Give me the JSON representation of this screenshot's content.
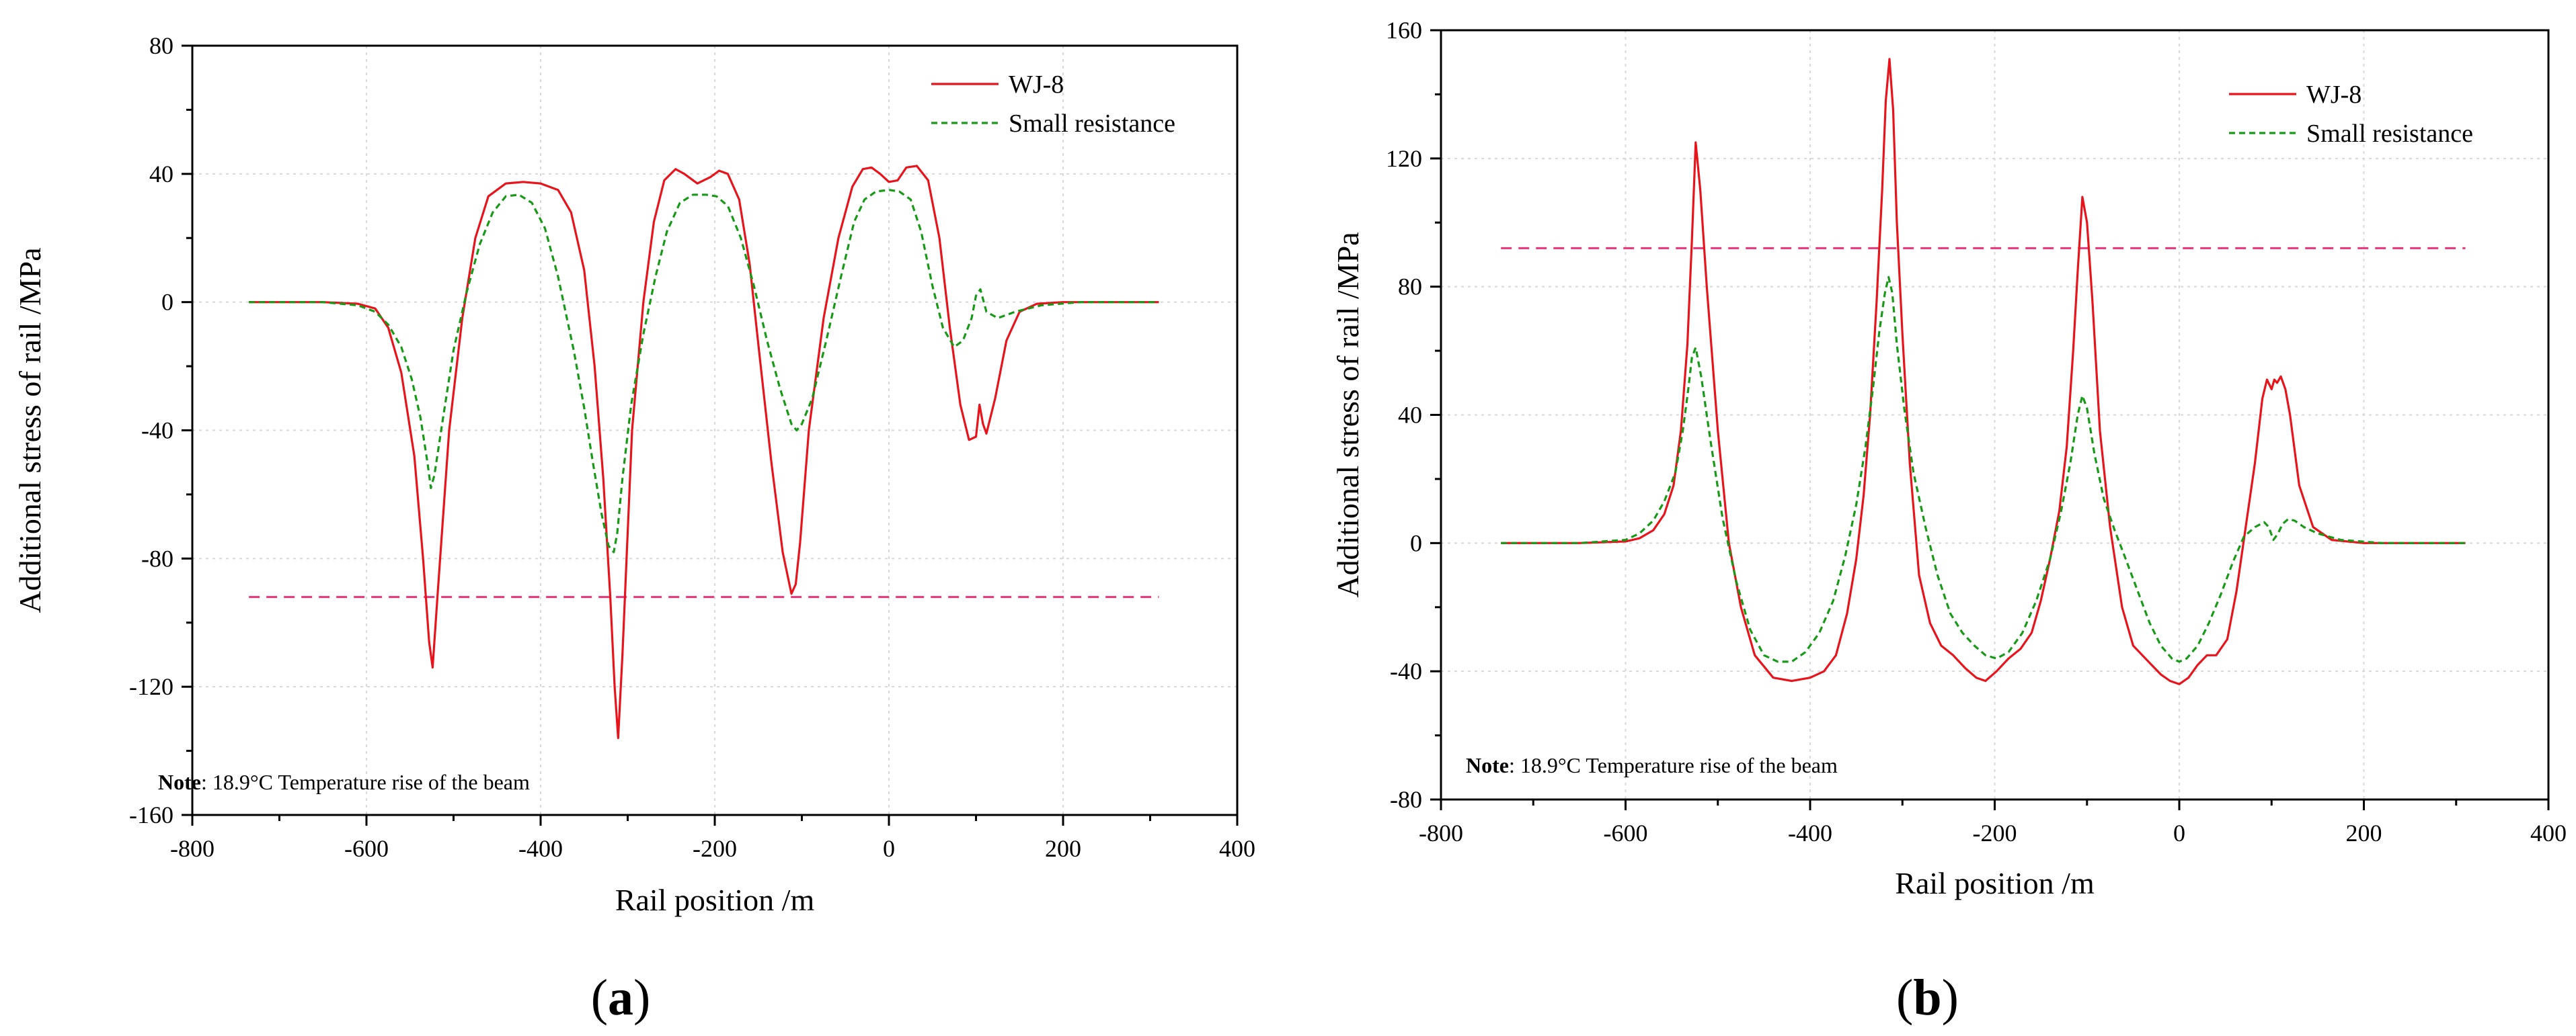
{
  "chart_data": [
    {
      "panel": "(a)",
      "panel_letter": "a",
      "type": "line",
      "xlabel": "Rail position /m",
      "ylabel": "Additional stress of rail /MPa",
      "xlim": [
        -800,
        400
      ],
      "ylim": [
        -160,
        80
      ],
      "xticks": [
        -800,
        -600,
        -400,
        -200,
        0,
        200,
        400
      ],
      "yticks": [
        -160,
        -120,
        -80,
        -40,
        0,
        40,
        80
      ],
      "grid": true,
      "legend_position": "top-right",
      "note_label": "Note",
      "note_text": ": 18.9°C Temperature rise of the beam",
      "threshold": {
        "value": -92,
        "color": "#e8347a",
        "x_range": [
          -735,
          310
        ]
      },
      "series": [
        {
          "name": "WJ-8",
          "color": "#e8141c",
          "style": "solid",
          "x": [
            -735,
            -650,
            -610,
            -590,
            -575,
            -560,
            -545,
            -535,
            -528,
            -524,
            -518,
            -505,
            -490,
            -475,
            -460,
            -440,
            -420,
            -400,
            -380,
            -365,
            -350,
            -338,
            -328,
            -320,
            -315,
            -311,
            -306,
            -295,
            -282,
            -270,
            -258,
            -245,
            -235,
            -220,
            -205,
            -195,
            -185,
            -172,
            -160,
            -148,
            -135,
            -122,
            -112,
            -107,
            -102,
            -92,
            -75,
            -58,
            -42,
            -30,
            -20,
            -10,
            0,
            10,
            20,
            32,
            45,
            58,
            70,
            82,
            92,
            100,
            104,
            108,
            112,
            122,
            135,
            150,
            170,
            200,
            250,
            310
          ],
          "y": [
            0,
            0,
            -0.5,
            -2,
            -8,
            -22,
            -48,
            -80,
            -106,
            -114,
            -90,
            -40,
            -5,
            20,
            33,
            37,
            37.5,
            37,
            35,
            28,
            10,
            -20,
            -55,
            -92,
            -120,
            -136,
            -110,
            -40,
            0,
            25,
            38,
            41.5,
            40,
            37,
            39,
            41,
            40,
            32,
            12,
            -18,
            -50,
            -78,
            -91,
            -88,
            -75,
            -40,
            -5,
            20,
            36,
            41.5,
            42,
            40,
            37.5,
            38,
            42,
            42.5,
            38,
            20,
            -8,
            -32,
            -43,
            -42,
            -32,
            -38,
            -41,
            -30,
            -12,
            -3,
            -0.5,
            0,
            0,
            0
          ]
        },
        {
          "name": "Small resistance",
          "color": "#189a18",
          "style": "dashed",
          "x": [
            -735,
            -650,
            -610,
            -590,
            -575,
            -560,
            -548,
            -538,
            -530,
            -526,
            -522,
            -512,
            -500,
            -485,
            -470,
            -455,
            -440,
            -425,
            -410,
            -395,
            -380,
            -362,
            -350,
            -340,
            -330,
            -322,
            -316,
            -312,
            -306,
            -296,
            -282,
            -268,
            -255,
            -240,
            -225,
            -210,
            -198,
            -185,
            -170,
            -155,
            -140,
            -125,
            -112,
            -106,
            -100,
            -88,
            -72,
            -55,
            -40,
            -28,
            -15,
            0,
            12,
            25,
            37,
            50,
            62,
            75,
            85,
            95,
            100,
            105,
            112,
            125,
            145,
            175,
            220,
            270,
            310
          ],
          "y": [
            0,
            0,
            -1,
            -3,
            -7,
            -14,
            -24,
            -36,
            -50,
            -58,
            -54,
            -36,
            -15,
            3,
            18,
            28,
            33,
            33.5,
            31,
            23,
            8,
            -15,
            -33,
            -50,
            -66,
            -76,
            -78,
            -72,
            -55,
            -32,
            -10,
            8,
            22,
            31,
            33.5,
            33.5,
            33,
            30,
            20,
            5,
            -12,
            -27,
            -38,
            -40,
            -38,
            -30,
            -12,
            8,
            25,
            32,
            34.5,
            35,
            34.5,
            32,
            22,
            5,
            -8,
            -14,
            -12,
            -5,
            2,
            4,
            -3,
            -5,
            -3,
            -1,
            0,
            0,
            0
          ]
        }
      ]
    },
    {
      "panel": "(b)",
      "panel_letter": "b",
      "type": "line",
      "xlabel": "Rail position /m",
      "ylabel": "Additional stress of rail /MPa",
      "xlim": [
        -800,
        400
      ],
      "ylim": [
        -80,
        160
      ],
      "xticks": [
        -800,
        -600,
        -400,
        -200,
        0,
        200,
        400
      ],
      "yticks": [
        -80,
        -40,
        0,
        40,
        80,
        120,
        160
      ],
      "grid": true,
      "legend_position": "top-right",
      "note_label": "Note",
      "note_text": ": 18.9°C Temperature rise of the beam",
      "threshold": {
        "value": 92,
        "color": "#e8347a",
        "x_range": [
          -735,
          310
        ]
      },
      "series": [
        {
          "name": "WJ-8",
          "color": "#e8141c",
          "style": "solid",
          "x": [
            -735,
            -650,
            -600,
            -585,
            -570,
            -558,
            -548,
            -540,
            -533,
            -528,
            -524,
            -519,
            -512,
            -500,
            -488,
            -475,
            -460,
            -440,
            -420,
            -400,
            -385,
            -372,
            -360,
            -350,
            -342,
            -335,
            -328,
            -322,
            -318,
            -314,
            -310,
            -306,
            -300,
            -292,
            -282,
            -270,
            -258,
            -245,
            -232,
            -220,
            -210,
            -198,
            -185,
            -172,
            -160,
            -150,
            -140,
            -130,
            -122,
            -115,
            -110,
            -105,
            -100,
            -94,
            -86,
            -75,
            -62,
            -50,
            -40,
            -30,
            -20,
            -10,
            0,
            10,
            20,
            30,
            40,
            52,
            62,
            72,
            82,
            90,
            95,
            100,
            103,
            106,
            110,
            115,
            120,
            130,
            145,
            165,
            200,
            250,
            310
          ],
          "y": [
            0,
            0,
            0.5,
            1.5,
            4,
            9,
            18,
            35,
            62,
            95,
            125,
            110,
            80,
            35,
            0,
            -20,
            -35,
            -42,
            -43,
            -42,
            -40,
            -35,
            -22,
            -5,
            15,
            40,
            75,
            110,
            138,
            151,
            135,
            100,
            65,
            25,
            -10,
            -25,
            -32,
            -35,
            -39,
            -42,
            -43,
            -40,
            -36,
            -33,
            -28,
            -18,
            -5,
            10,
            30,
            60,
            85,
            108,
            100,
            75,
            35,
            5,
            -20,
            -32,
            -35,
            -38,
            -41,
            -43,
            -44,
            -42,
            -38,
            -35,
            -35,
            -30,
            -15,
            5,
            25,
            45,
            51,
            48,
            51,
            50,
            52,
            48,
            40,
            18,
            5,
            1,
            0,
            0,
            0
          ]
        },
        {
          "name": "Small resistance",
          "color": "#189a18",
          "style": "dashed",
          "x": [
            -735,
            -650,
            -600,
            -585,
            -570,
            -558,
            -546,
            -538,
            -532,
            -528,
            -524,
            -518,
            -508,
            -495,
            -480,
            -465,
            -450,
            -435,
            -420,
            -405,
            -390,
            -375,
            -362,
            -350,
            -340,
            -332,
            -325,
            -319,
            -315,
            -311,
            -306,
            -298,
            -288,
            -275,
            -262,
            -248,
            -235,
            -222,
            -210,
            -198,
            -185,
            -170,
            -155,
            -140,
            -128,
            -118,
            -110,
            -105,
            -100,
            -92,
            -82,
            -70,
            -58,
            -45,
            -32,
            -20,
            -8,
            0,
            8,
            20,
            32,
            45,
            58,
            70,
            82,
            92,
            97,
            102,
            107,
            112,
            118,
            125,
            135,
            150,
            175,
            220,
            270,
            310
          ],
          "y": [
            0,
            0,
            1,
            3,
            7,
            13,
            22,
            35,
            48,
            58,
            61,
            52,
            32,
            8,
            -12,
            -27,
            -35,
            -37,
            -37,
            -34,
            -28,
            -18,
            -4,
            12,
            30,
            48,
            66,
            78,
            83,
            78,
            62,
            42,
            22,
            5,
            -10,
            -22,
            -28,
            -32,
            -35,
            -36,
            -34,
            -28,
            -18,
            -5,
            10,
            25,
            40,
            46,
            42,
            28,
            14,
            4,
            -5,
            -15,
            -25,
            -32,
            -36,
            -37,
            -36,
            -32,
            -25,
            -16,
            -6,
            2,
            5,
            6.5,
            5,
            1,
            3,
            6,
            7.5,
            7,
            5,
            3,
            1,
            0,
            0,
            0
          ]
        }
      ]
    }
  ]
}
